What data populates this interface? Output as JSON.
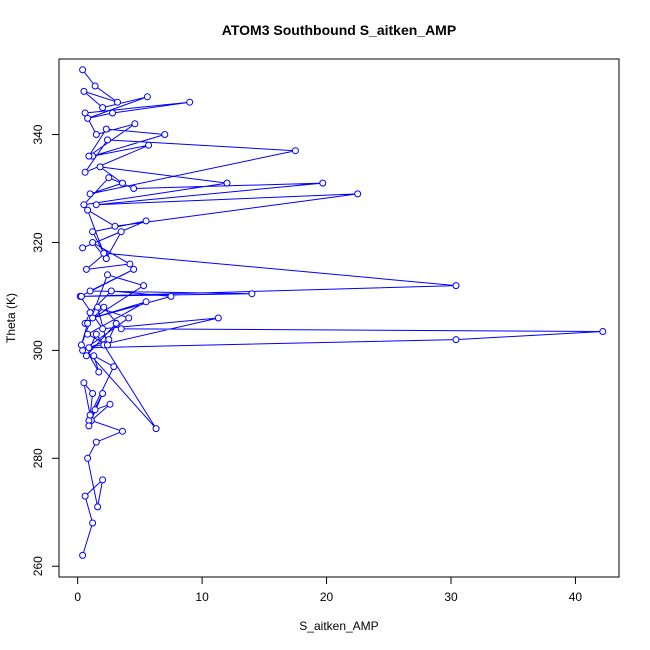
{
  "chart_data": {
    "type": "line",
    "title": "ATOM3 Southbound S_aitken_AMP",
    "xlabel": "S_aitken_AMP",
    "ylabel": "Theta (K)",
    "xlim": [
      -1.5,
      43.5
    ],
    "ylim": [
      258,
      354
    ],
    "x_ticks": [
      0,
      10,
      20,
      30,
      40
    ],
    "y_ticks": [
      260,
      280,
      300,
      320,
      340
    ],
    "grid": false,
    "legend": "none",
    "series_color": "#0000ff",
    "series": [
      {
        "markers": "open-circle",
        "x": [
          0.4,
          1.2,
          0.6,
          2.0,
          1.6,
          0.8,
          1.5,
          3.6,
          1.1,
          2.6,
          1.4,
          0.9,
          2.0,
          0.9,
          1.2,
          0.5,
          1.0,
          2.9,
          1.3,
          1.7,
          0.7,
          6.3,
          2.1,
          1.5,
          0.7,
          3.1,
          2.5,
          0.4,
          4.1,
          1.6,
          2.4,
          0.8,
          5.5,
          1.2,
          7.5,
          2.7,
          1.0,
          0.6,
          5.3,
          2.4,
          0.3,
          0.8,
          2.1,
          3.5,
          42.2,
          30.4,
          0.9,
          11.3,
          2.0,
          0.2,
          4.5,
          1.0,
          14.0,
          0.3,
          30.4,
          2.2,
          0.7,
          4.2,
          1.2,
          2.3,
          3.5,
          0.4,
          5.5,
          1.2,
          2.1,
          0.8,
          3.0,
          22.5,
          1.5,
          19.7,
          4.5,
          2.5,
          0.5,
          12.0,
          1.8,
          3.6,
          1.0,
          17.5,
          2.4,
          0.6,
          5.7,
          1.2,
          7.0,
          2.3,
          0.9,
          4.6,
          1.5,
          0.6,
          9.0,
          2.8,
          0.8,
          5.6,
          2.0,
          0.5,
          3.2,
          1.4,
          0.4
        ],
        "y": [
          262,
          268,
          273,
          276,
          271,
          280,
          283,
          285,
          287,
          290,
          289,
          287,
          292,
          286,
          292,
          294,
          288,
          297,
          299,
          296,
          300,
          285.5,
          301,
          303,
          299,
          305,
          302,
          300,
          306,
          308,
          301,
          303,
          309,
          306,
          310,
          311,
          307,
          305,
          312,
          314,
          301,
          305,
          308,
          304,
          303.5,
          302,
          300.5,
          306,
          304,
          310,
          315,
          311,
          310.5,
          310,
          312,
          318,
          315,
          316,
          320,
          317,
          322,
          319,
          324,
          322,
          318,
          326,
          323,
          329,
          327,
          331,
          330,
          332,
          327,
          331,
          334,
          331,
          329,
          337,
          339,
          333,
          338,
          336,
          340,
          341,
          336,
          342,
          340,
          344,
          346,
          344,
          343,
          347,
          345,
          348,
          346,
          349,
          352
        ]
      }
    ]
  }
}
